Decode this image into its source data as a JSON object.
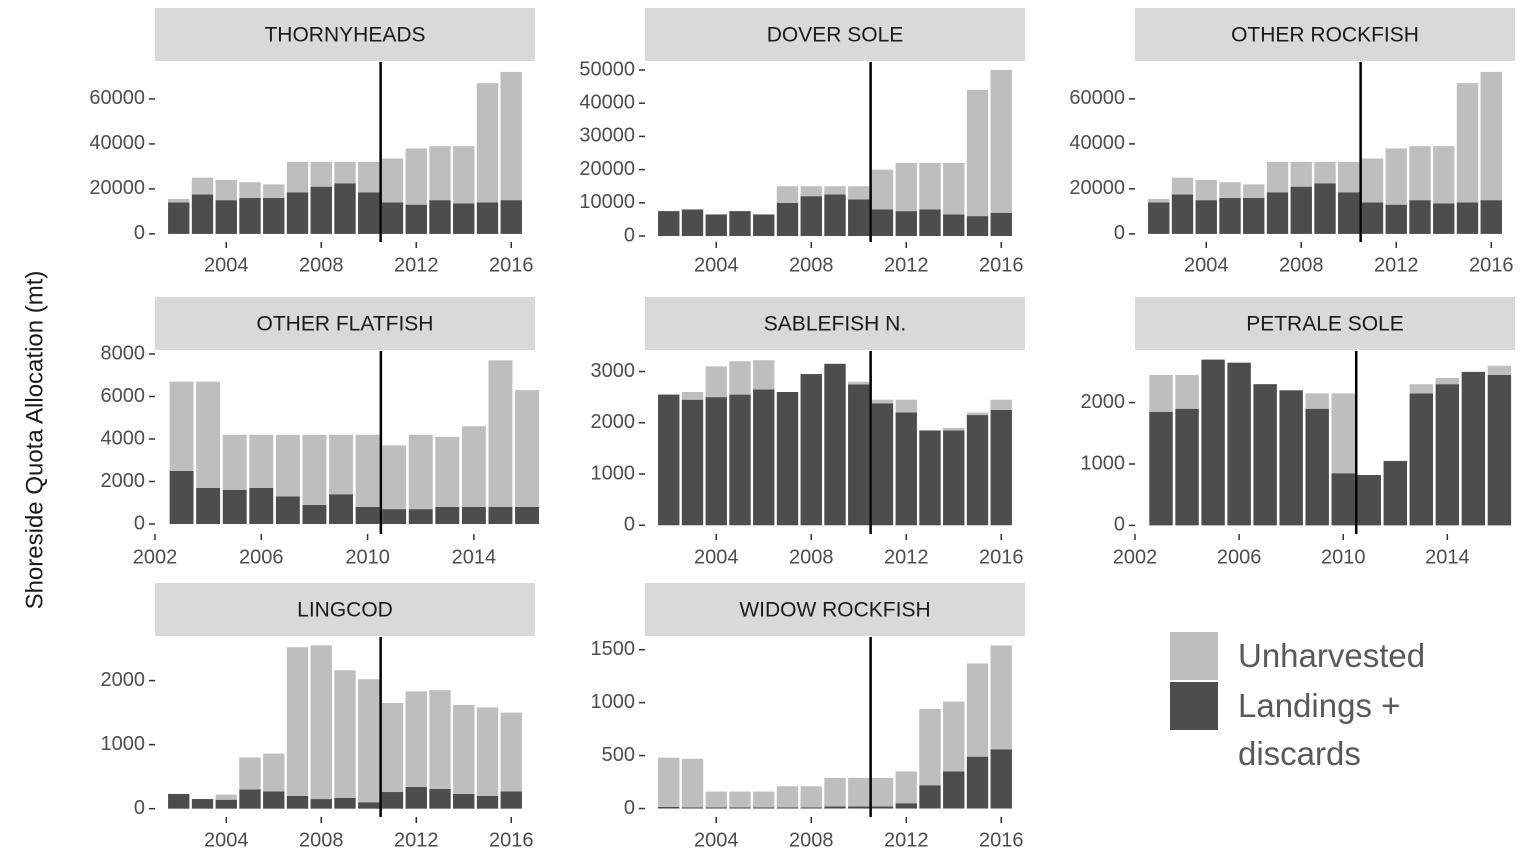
{
  "chart_data": {
    "type": "bar",
    "stacked": true,
    "ylabel": "Shoreside Quota Allocation (mt)",
    "series": [
      {
        "name": "Landings + discards",
        "color": "#4d4d4d"
      },
      {
        "name": "Unharvested",
        "color": "#bebebe"
      }
    ],
    "panels": [
      {
        "title": "THORNYHEADS",
        "x": [
          2002,
          2003,
          2004,
          2005,
          2006,
          2007,
          2008,
          2009,
          2010,
          2011,
          2012,
          2013,
          2014,
          2015,
          2016
        ],
        "xlim": [
          2001,
          2017
        ],
        "xticks": [
          2004,
          2008,
          2012,
          2016
        ],
        "ylim": [
          -3600,
          76400
        ],
        "yticks": [
          0,
          20000,
          40000,
          60000
        ],
        "vline": 2010.5,
        "series": [
          {
            "values": [
              14000,
              17500,
              15000,
              16000,
              16000,
              18500,
              21000,
              22500,
              18500,
              14000,
              13000,
              15000,
              13500,
              14000,
              15000
            ]
          },
          {
            "values": [
              1500,
              7500,
              9000,
              7000,
              6000,
              13500,
              11000,
              9500,
              13500,
              19500,
              25000,
              24000,
              25500,
              53000,
              57000
            ]
          }
        ]
      },
      {
        "title": "DOVER SOLE",
        "x": [
          2002,
          2003,
          2004,
          2005,
          2006,
          2007,
          2008,
          2009,
          2010,
          2011,
          2012,
          2013,
          2014,
          2015,
          2016
        ],
        "xlim": [
          2001,
          2017
        ],
        "xticks": [
          2004,
          2008,
          2012,
          2016
        ],
        "ylim": [
          -1800,
          52400
        ],
        "yticks": [
          0,
          10000,
          20000,
          30000,
          40000,
          50000
        ],
        "vline": 2010.5,
        "series": [
          {
            "values": [
              7500,
              8000,
              6500,
              7500,
              6500,
              10000,
              12000,
              12500,
              11000,
              8000,
              7500,
              8000,
              6500,
              6000,
              7000
            ]
          },
          {
            "values": [
              0,
              0,
              0,
              0,
              0,
              5000,
              3000,
              2500,
              4000,
              12000,
              14500,
              14000,
              15500,
              38000,
              43000
            ]
          }
        ]
      },
      {
        "title": "OTHER ROCKFISH",
        "x": [
          2002,
          2003,
          2004,
          2005,
          2006,
          2007,
          2008,
          2009,
          2010,
          2011,
          2012,
          2013,
          2014,
          2015,
          2016
        ],
        "xlim": [
          2001,
          2017
        ],
        "xticks": [
          2004,
          2008,
          2012,
          2016
        ],
        "ylim": [
          -3600,
          76400
        ],
        "yticks": [
          0,
          20000,
          40000,
          60000
        ],
        "vline": 2010.5,
        "series": [
          {
            "values": [
              14000,
              17500,
              15000,
              16000,
              16000,
              18500,
              21000,
              22500,
              18500,
              14000,
              13000,
              15000,
              13500,
              14000,
              15000
            ]
          },
          {
            "values": [
              1500,
              7500,
              9000,
              7000,
              6000,
              13500,
              11000,
              9500,
              13500,
              19500,
              25000,
              24000,
              25500,
              53000,
              57000
            ]
          }
        ]
      },
      {
        "title": "OTHER FLATFISH",
        "x": [
          2003,
          2004,
          2005,
          2006,
          2007,
          2008,
          2009,
          2010,
          2011,
          2012,
          2013,
          2014,
          2015,
          2016
        ],
        "xlim": [
          2002,
          2016.3
        ],
        "xticks": [
          2002,
          2006,
          2010,
          2014
        ],
        "ylim": [
          -470,
          8140
        ],
        "yticks": [
          0,
          2000,
          4000,
          6000,
          8000
        ],
        "vline": 2010.5,
        "series": [
          {
            "values": [
              2500,
              1700,
              1600,
              1700,
              1300,
              900,
              1400,
              800,
              700,
              700,
              800,
              800,
              800,
              800
            ]
          },
          {
            "values": [
              4200,
              5000,
              2600,
              2500,
              2900,
              3300,
              2800,
              3400,
              3000,
              3500,
              3300,
              3800,
              6900,
              5500
            ]
          }
        ]
      },
      {
        "title": "SABLEFISH N.",
        "x": [
          2002,
          2003,
          2004,
          2005,
          2006,
          2007,
          2008,
          2009,
          2010,
          2011,
          2012,
          2013,
          2014,
          2015,
          2016
        ],
        "xlim": [
          2001,
          2017
        ],
        "xticks": [
          2004,
          2008,
          2012,
          2016
        ],
        "ylim": [
          -170,
          3400
        ],
        "yticks": [
          0,
          1000,
          2000,
          3000
        ],
        "vline": 2010.5,
        "series": [
          {
            "values": [
              2550,
              2450,
              2500,
              2550,
              2650,
              2600,
              2950,
              3150,
              2750,
              2380,
              2200,
              1850,
              1850,
              2150,
              2250
            ]
          },
          {
            "values": [
              0,
              150,
              600,
              650,
              570,
              0,
              0,
              0,
              50,
              70,
              250,
              0,
              50,
              50,
              200
            ]
          }
        ]
      },
      {
        "title": "PETRALE SOLE",
        "x": [
          2003,
          2004,
          2005,
          2006,
          2007,
          2008,
          2009,
          2010,
          2011,
          2012,
          2013,
          2014,
          2015,
          2016
        ],
        "xlim": [
          2002,
          2016.6
        ],
        "xticks": [
          2002,
          2006,
          2010,
          2014
        ],
        "ylim": [
          -140,
          2840
        ],
        "yticks": [
          0,
          1000,
          2000
        ],
        "vline": 2010.5,
        "series": [
          {
            "values": [
              1850,
              1900,
              2700,
              2650,
              2300,
              2200,
              1900,
              850,
              820,
              1050,
              2150,
              2300,
              2500,
              2450
            ]
          },
          {
            "values": [
              600,
              550,
              0,
              0,
              0,
              0,
              250,
              1300,
              0,
              0,
              150,
              100,
              0,
              150
            ]
          }
        ]
      },
      {
        "title": "LINGCOD",
        "x": [
          2002,
          2003,
          2004,
          2005,
          2006,
          2007,
          2008,
          2009,
          2010,
          2011,
          2012,
          2013,
          2014,
          2015,
          2016
        ],
        "xlim": [
          2001,
          2017
        ],
        "xticks": [
          2004,
          2008,
          2012,
          2016
        ],
        "ylim": [
          -130,
          2680
        ],
        "yticks": [
          0,
          1000,
          2000
        ],
        "vline": 2010.5,
        "series": [
          {
            "values": [
              230,
              150,
              140,
              300,
              270,
              200,
              150,
              170,
              100,
              260,
              340,
              310,
              230,
              200,
              270
            ]
          },
          {
            "values": [
              0,
              0,
              80,
              500,
              590,
              2320,
              2400,
              1990,
              1920,
              1390,
              1490,
              1540,
              1390,
              1380,
              1230
            ]
          }
        ]
      },
      {
        "title": "WIDOW ROCKFISH",
        "x": [
          2002,
          2003,
          2004,
          2005,
          2006,
          2007,
          2008,
          2009,
          2010,
          2011,
          2012,
          2013,
          2014,
          2015,
          2016
        ],
        "xlim": [
          2001,
          2017
        ],
        "xticks": [
          2004,
          2008,
          2012,
          2016
        ],
        "ylim": [
          -80,
          1620
        ],
        "yticks": [
          0,
          500,
          1000,
          1500
        ],
        "vline": 2010.5,
        "series": [
          {
            "values": [
              15,
              10,
              10,
              10,
              10,
              10,
              10,
              20,
              20,
              20,
              50,
              220,
              350,
              490,
              560
            ]
          },
          {
            "values": [
              465,
              460,
              150,
              150,
              150,
              200,
              200,
              270,
              270,
              270,
              300,
              720,
              660,
              880,
              980
            ]
          }
        ]
      }
    ]
  }
}
